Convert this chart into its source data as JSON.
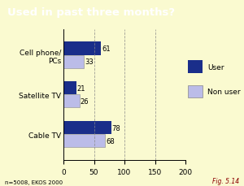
{
  "title": "Used in past three months?",
  "title_bg": "#7B0000",
  "title_color": "#FFFFFF",
  "background_color": "#FAFAD0",
  "categories": [
    "Cable TV",
    "Satellite TV",
    "Cell phone/\nPCs"
  ],
  "user_values": [
    78,
    21,
    61
  ],
  "nonuser_values": [
    68,
    26,
    33
  ],
  "user_color": "#1A2E8A",
  "nonuser_color": "#BBBCE8",
  "xlim": [
    0,
    200
  ],
  "xticks": [
    0,
    50,
    100,
    150,
    200
  ],
  "bar_height": 0.33,
  "footnote": "n=5008, EKOS 2000",
  "fig_label": "Fig. 5.14",
  "legend_user": "User",
  "legend_nonuser": "Non user"
}
